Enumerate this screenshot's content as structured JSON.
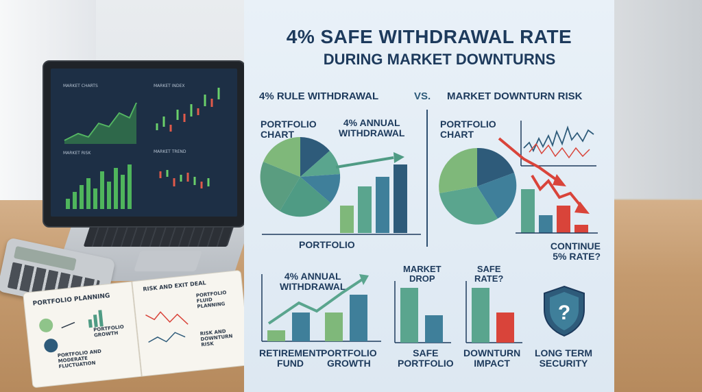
{
  "header": {
    "title_line1": "4% SAFE WITHDRAWAL RATE",
    "title_line2": "DURING MARKET DOWNTURNS"
  },
  "comparison": {
    "left_heading": "4% RULE WITHDRAWAL",
    "vs_label": "VS.",
    "right_heading": "MARKET DOWNTURN RISK"
  },
  "left_panel": {
    "chart_label": "PORTFOLIO\nCHART",
    "withdrawal_label": "4% ANNUAL\nWITHDRAWAL",
    "bottom_label": "PORTFOLIO",
    "pie_colors": [
      "#7fb87a",
      "#2e5b7a",
      "#5aa58e",
      "#3f7f9a",
      "#4f9b84",
      "#6cae8c"
    ],
    "bar_colors": [
      "#7fb87a",
      "#5aa58e",
      "#3f7f9a",
      "#2e5b7a"
    ]
  },
  "right_panel": {
    "chart_label": "PORTFOLIO\nCHART",
    "question_label": "CONTINUE\n5% RATE?",
    "accent_red": "#d9443a"
  },
  "bottom_row": {
    "retirement": {
      "withdrawal_label": "4% ANNUAL\nWITHDRAWAL",
      "label_a": "RETIREMENT\nFUND",
      "label_b": "PORTFOLIO\nGROWTH"
    },
    "market_drop": {
      "top_label": "MARKET\nDROP",
      "bottom_label": "SAFE\nPORTFOLIO"
    },
    "safe_rate": {
      "top_label": "SAFE\nRATE?",
      "bottom_label": "DOWNTURN\nIMPACT"
    },
    "security": {
      "icon": "shield-question-icon",
      "bottom_label": "LONG TERM\nSECURITY"
    }
  },
  "scene": {
    "laptop_chart_labels": [
      "MARKET CHARTS",
      "MARKET TREND",
      "MARKET RISK",
      "MARKET INDEX"
    ],
    "notebook": {
      "left_title": "PORTFOLIO PLANNING",
      "left_item_1": "PORTFOLIO\nGROWTH",
      "left_item_2": "PORTFOLIO AND\nMODERATE\nFLUCTUATION",
      "right_title": "RISK AND EXIT DEAL",
      "right_item_1": "PORTFOLIO\nFLUID\nPLANNING",
      "right_item_2": "RISK AND\nDOWNTURN\nRISK"
    }
  }
}
